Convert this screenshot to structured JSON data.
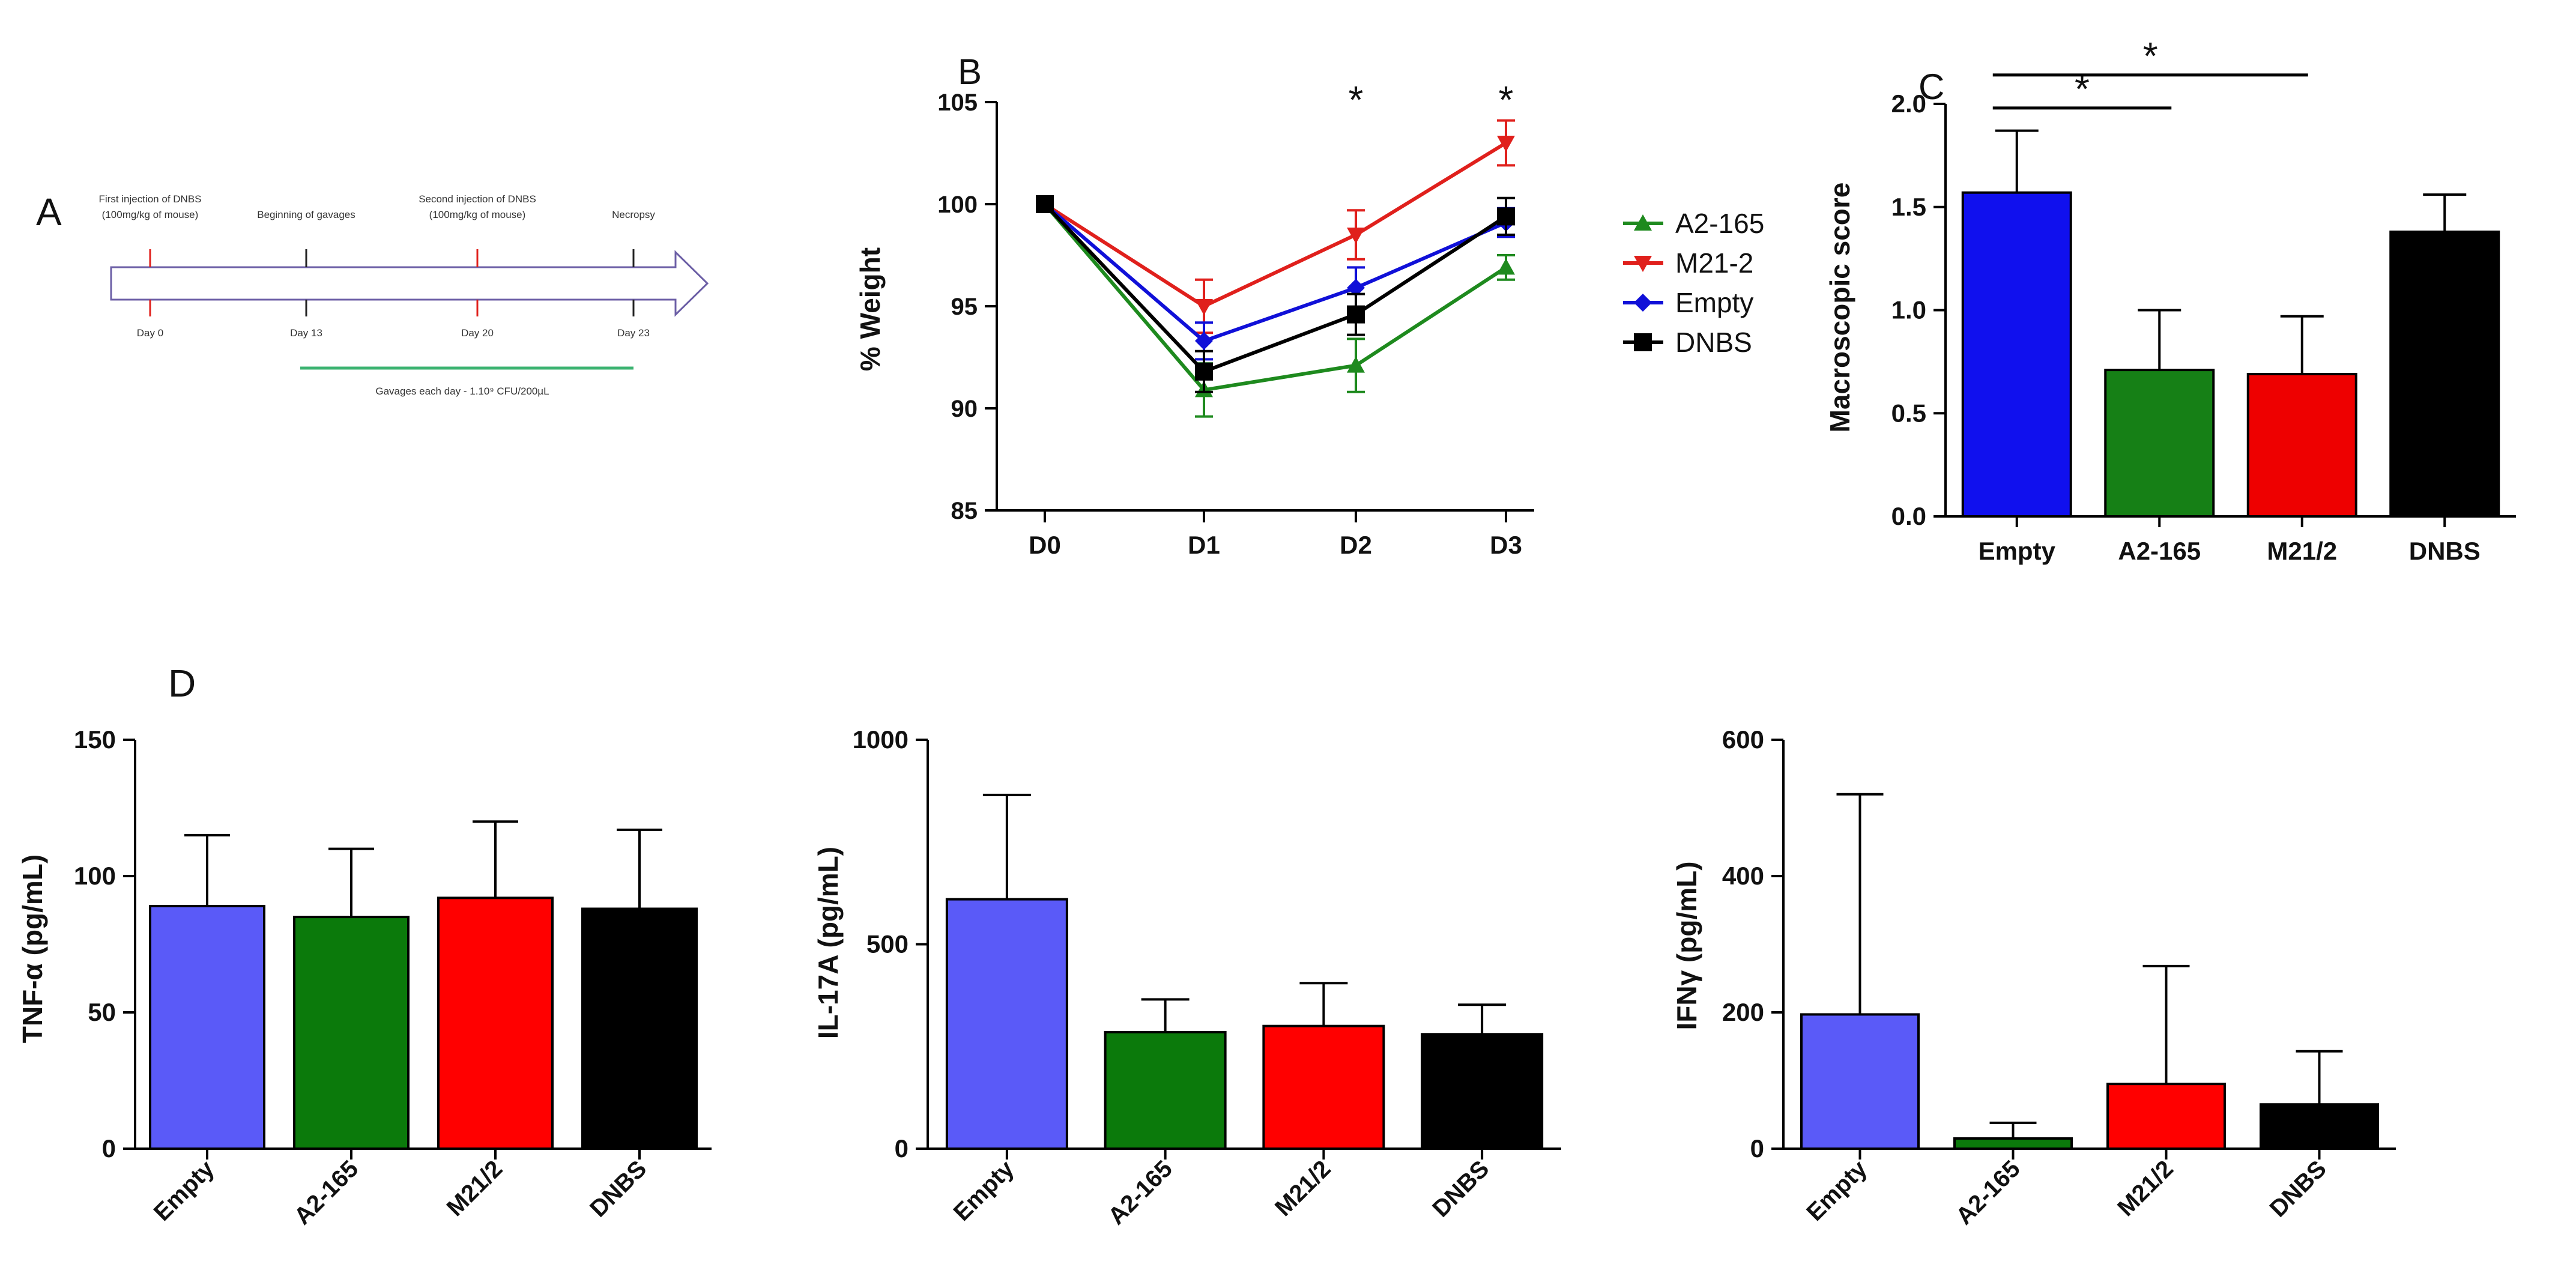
{
  "panel_a": {
    "letter": "A",
    "events": [
      {
        "above": [
          "First injection of DNBS",
          "(100mg/kg of mouse)"
        ],
        "below": "Day 0",
        "tick_color": "#e0201c"
      },
      {
        "above": [
          "Beginning of gavages"
        ],
        "below": "Day 13",
        "tick_color": "#222222"
      },
      {
        "above": [
          "Second injection of DNBS",
          "(100mg/kg of mouse)"
        ],
        "below": "Day 20",
        "tick_color": "#e0201c"
      },
      {
        "above": [
          "Necropsy"
        ],
        "below": "Day 23",
        "tick_color": "#222222"
      }
    ],
    "gavage_label": "Gavages each day - 1.10⁹ CFU/200µL",
    "gavage_color": "#3cb371"
  },
  "panel_b": {
    "letter": "B",
    "stars": [
      {
        "x_index": 2,
        "label": "*"
      },
      {
        "x_index": 3,
        "label": "*"
      }
    ]
  },
  "panel_c": {
    "letter": "C",
    "brackets": [
      {
        "from": 0,
        "to": 1,
        "y": 1.98,
        "label": "*"
      },
      {
        "from": 0,
        "to": 2,
        "y": 2.14,
        "label": "*"
      }
    ]
  },
  "panel_d": {
    "letter": "D"
  },
  "chart_data": [
    {
      "id": "weight",
      "type": "line",
      "title": "",
      "xlabel": "",
      "ylabel": "% Weight",
      "x": [
        "D0",
        "D1",
        "D2",
        "D3"
      ],
      "ylim": [
        85,
        105
      ],
      "yticks": [
        85,
        90,
        95,
        100,
        105
      ],
      "legend_position": "right",
      "series": [
        {
          "name": "A2-165",
          "color": "#1e8a1e",
          "marker": "triangle-up",
          "values": [
            100,
            90.9,
            92.1,
            96.9
          ],
          "errors": [
            0,
            1.3,
            1.3,
            0.6
          ]
        },
        {
          "name": "M21-2",
          "color": "#e0201c",
          "marker": "triangle-down",
          "values": [
            100,
            95.0,
            98.5,
            103.0
          ],
          "errors": [
            0,
            1.3,
            1.2,
            1.1
          ]
        },
        {
          "name": "Empty",
          "color": "#1010d8",
          "marker": "diamond",
          "values": [
            100,
            93.3,
            95.9,
            99.1
          ],
          "errors": [
            0,
            0.9,
            1.0,
            0.7
          ]
        },
        {
          "name": "DNBS",
          "color": "#000000",
          "marker": "square",
          "values": [
            100,
            91.8,
            94.6,
            99.4
          ],
          "errors": [
            0,
            1.0,
            1.0,
            0.9
          ]
        }
      ]
    },
    {
      "id": "macroscopic",
      "type": "bar",
      "title": "",
      "xlabel": "",
      "ylabel": "Macroscopic score",
      "categories": [
        "Empty",
        "A2-165",
        "M21/2",
        "DNBS"
      ],
      "values": [
        1.57,
        0.71,
        0.69,
        1.38
      ],
      "errors": [
        0.3,
        0.29,
        0.28,
        0.18
      ],
      "colors": [
        "#1010ee",
        "#168016",
        "#ee0000",
        "#000000"
      ],
      "ylim": [
        0,
        2.0
      ],
      "yticks": [
        "0.0",
        "0.5",
        "1.0",
        "1.5",
        "2.0"
      ]
    },
    {
      "id": "tnf",
      "type": "bar",
      "title": "",
      "xlabel": "",
      "ylabel": "TNF-α (pg/mL)",
      "categories": [
        "Empty",
        "A2-165",
        "M21/2",
        "DNBS"
      ],
      "values": [
        89,
        85,
        92,
        88
      ],
      "errors": [
        26,
        25,
        28,
        29
      ],
      "colors": [
        "#5a5af8",
        "#0b7a0b",
        "#ff0000",
        "#000000"
      ],
      "ylim": [
        0,
        150
      ],
      "yticks": [
        "0",
        "50",
        "100",
        "150"
      ]
    },
    {
      "id": "il17a",
      "type": "bar",
      "title": "",
      "xlabel": "",
      "ylabel": "IL-17A (pg/mL)",
      "categories": [
        "Empty",
        "A2-165",
        "M21/2",
        "DNBS"
      ],
      "values": [
        610,
        285,
        300,
        280
      ],
      "errors": [
        255,
        80,
        105,
        72
      ],
      "colors": [
        "#5a5af8",
        "#0b7a0b",
        "#ff0000",
        "#000000"
      ],
      "ylim": [
        0,
        1000
      ],
      "yticks": [
        "0",
        "500",
        "1000"
      ]
    },
    {
      "id": "ifng",
      "type": "bar",
      "title": "",
      "xlabel": "",
      "ylabel": "IFNγ (pg/mL)",
      "categories": [
        "Empty",
        "A2-165",
        "M21/2",
        "DNBS"
      ],
      "values": [
        197,
        15,
        95,
        65
      ],
      "errors": [
        323,
        23,
        173,
        78
      ],
      "colors": [
        "#5a5af8",
        "#0b7a0b",
        "#ff0000",
        "#000000"
      ],
      "ylim": [
        0,
        600
      ],
      "yticks": [
        "0",
        "200",
        "400",
        "600"
      ]
    }
  ]
}
